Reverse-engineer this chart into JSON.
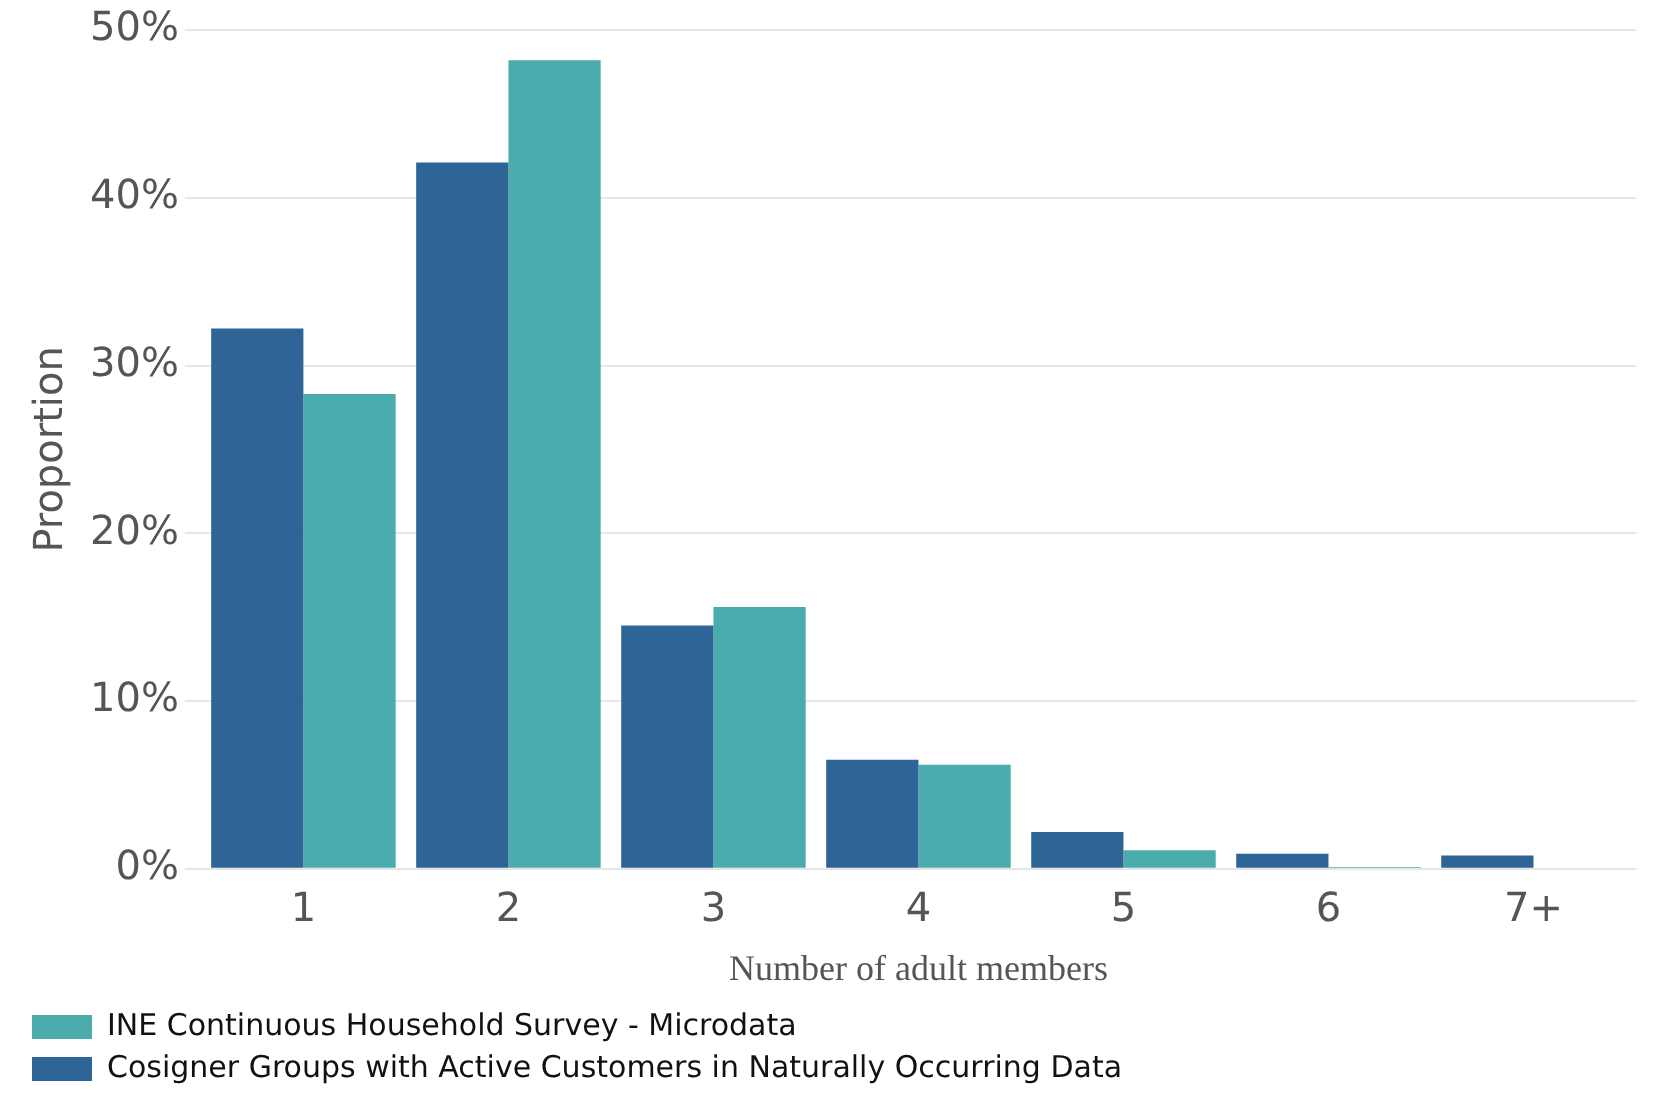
{
  "chart_data": {
    "type": "bar",
    "xlabel": "Number of adult members",
    "ylabel": "Proportion",
    "categories": [
      "1",
      "2",
      "3",
      "4",
      "5",
      "6",
      "7+"
    ],
    "series": [
      {
        "name": "Cosigner Groups with Active Customers in Naturally Occurring Data",
        "color": "#2f6496",
        "values": [
          32.2,
          42.1,
          14.5,
          6.5,
          2.2,
          0.9,
          0.8
        ]
      },
      {
        "name": "INE Continuous Household Survey - Microdata",
        "color": "#4aacac",
        "values": [
          28.3,
          48.2,
          15.6,
          6.2,
          1.1,
          0.1,
          0
        ]
      }
    ],
    "ylim": [
      0,
      50
    ],
    "yticks": [
      {
        "value": 0,
        "label": "0%"
      },
      {
        "value": 10,
        "label": "10%"
      },
      {
        "value": 20,
        "label": "20%"
      },
      {
        "value": 30,
        "label": "30%"
      },
      {
        "value": 40,
        "label": "40%"
      },
      {
        "value": 50,
        "label": "50%"
      }
    ],
    "grid": "y",
    "legend": "bottom"
  }
}
